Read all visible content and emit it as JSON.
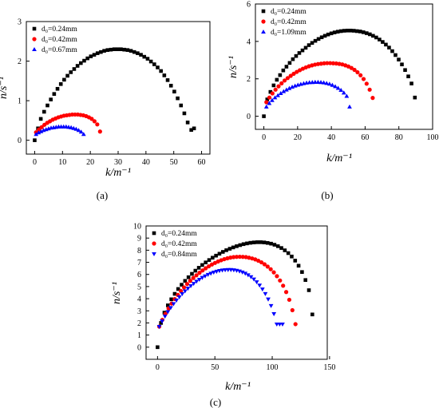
{
  "chart_data": [
    {
      "type": "scatter",
      "panel_label": "(a)",
      "xlabel": "k/m⁻¹",
      "ylabel": "n/s⁻¹",
      "xlim": [
        -3,
        63
      ],
      "ylim": [
        -0.35,
        3.0
      ],
      "xticks": [
        "0",
        "10",
        "20",
        "30",
        "40",
        "50",
        "60"
      ],
      "yticks": [
        "0",
        "1",
        "2",
        "3"
      ],
      "legend_position": "top-left",
      "series": [
        {
          "name": "d₀=0.24mm",
          "marker": "square",
          "color": "#000000",
          "x": [
            0,
            1.2,
            2.2,
            3.4,
            4.6,
            5.8,
            7.0,
            8.2,
            9.4,
            10.6,
            11.8,
            13.0,
            14.2,
            15.4,
            16.6,
            17.8,
            19.0,
            20.2,
            21.4,
            22.6,
            23.8,
            25.0,
            26.2,
            27.4,
            28.6,
            29.8,
            31.0,
            32.2,
            33.4,
            34.6,
            35.8,
            37.0,
            38.2,
            39.4,
            40.6,
            41.8,
            43.0,
            44.2,
            45.4,
            46.6,
            47.8,
            49.0,
            50.2,
            51.4,
            52.6,
            53.8,
            55.0,
            56.3,
            57.3
          ],
          "y": [
            0.0,
            0.3,
            0.54,
            0.72,
            0.88,
            1.03,
            1.17,
            1.3,
            1.42,
            1.53,
            1.63,
            1.72,
            1.8,
            1.88,
            1.95,
            2.01,
            2.07,
            2.12,
            2.16,
            2.2,
            2.23,
            2.26,
            2.28,
            2.29,
            2.3,
            2.3,
            2.3,
            2.29,
            2.28,
            2.26,
            2.23,
            2.2,
            2.16,
            2.11,
            2.06,
            1.99,
            1.92,
            1.84,
            1.75,
            1.64,
            1.52,
            1.38,
            1.23,
            1.06,
            0.88,
            0.68,
            0.45,
            0.26,
            0.3
          ]
        },
        {
          "name": "d₀=0.42mm",
          "marker": "circle",
          "color": "#ff0000",
          "x": [
            0.5,
            1.5,
            2.5,
            3.5,
            4.5,
            5.5,
            6.5,
            7.5,
            8.5,
            9.5,
            10.5,
            11.5,
            12.5,
            13.5,
            14.5,
            15.5,
            16.5,
            17.5,
            18.5,
            19.5,
            20.5,
            21.5,
            22.5,
            23.5
          ],
          "y": [
            0.2,
            0.27,
            0.33,
            0.39,
            0.44,
            0.48,
            0.52,
            0.55,
            0.58,
            0.6,
            0.62,
            0.63,
            0.64,
            0.65,
            0.65,
            0.65,
            0.64,
            0.63,
            0.61,
            0.58,
            0.54,
            0.48,
            0.4,
            0.22
          ]
        },
        {
          "name": "d₀=0.67mm",
          "marker": "triangle",
          "color": "#0000ff",
          "x": [
            0.5,
            1.4,
            2.3,
            3.2,
            4.1,
            5.0,
            5.9,
            6.8,
            7.7,
            8.6,
            9.5,
            10.4,
            11.3,
            12.2,
            13.1,
            14.0,
            14.9,
            15.8,
            16.7,
            17.6
          ],
          "y": [
            0.15,
            0.19,
            0.22,
            0.25,
            0.27,
            0.29,
            0.31,
            0.32,
            0.33,
            0.34,
            0.34,
            0.34,
            0.34,
            0.33,
            0.32,
            0.3,
            0.28,
            0.25,
            0.21,
            0.15
          ]
        }
      ]
    },
    {
      "type": "scatter",
      "panel_label": "(b)",
      "xlabel": "k/m⁻¹",
      "ylabel": "n/s⁻¹",
      "xlim": [
        -5,
        100
      ],
      "ylim": [
        -0.7,
        6.0
      ],
      "xticks": [
        "0",
        "20",
        "40",
        "60",
        "80",
        "100"
      ],
      "yticks": [
        "0",
        "2",
        "4",
        "6"
      ],
      "legend_position": "top-left",
      "series": [
        {
          "name": "d₀=0.24mm",
          "marker": "square",
          "color": "#000000",
          "x": [
            0,
            2.0,
            3.9,
            5.8,
            7.7,
            9.6,
            11.5,
            13.4,
            15.3,
            17.2,
            19.1,
            21.0,
            22.9,
            24.8,
            26.7,
            28.6,
            30.5,
            32.4,
            34.3,
            36.2,
            38.1,
            40.0,
            41.9,
            43.8,
            45.7,
            47.6,
            49.5,
            51.4,
            53.3,
            55.2,
            57.1,
            59.0,
            60.9,
            62.8,
            64.7,
            66.6,
            68.5,
            70.4,
            72.3,
            74.2,
            76.1,
            78.0,
            79.9,
            81.8,
            83.7,
            85.6,
            87.5,
            89.5
          ],
          "y": [
            0.0,
            0.9,
            1.3,
            1.65,
            1.95,
            2.2,
            2.45,
            2.65,
            2.85,
            3.05,
            3.22,
            3.38,
            3.52,
            3.66,
            3.8,
            3.92,
            4.03,
            4.13,
            4.22,
            4.3,
            4.37,
            4.43,
            4.48,
            4.52,
            4.55,
            4.57,
            4.58,
            4.58,
            4.57,
            4.55,
            4.53,
            4.49,
            4.44,
            4.38,
            4.3,
            4.21,
            4.1,
            3.97,
            3.83,
            3.67,
            3.48,
            3.27,
            3.03,
            2.77,
            2.47,
            2.13,
            1.75,
            1.0
          ]
        },
        {
          "name": "d₀=0.42mm",
          "marker": "circle",
          "color": "#ff0000",
          "x": [
            1.5,
            3.3,
            5.1,
            6.9,
            8.7,
            10.5,
            12.3,
            14.1,
            15.9,
            17.7,
            19.5,
            21.3,
            23.1,
            24.9,
            26.7,
            28.5,
            30.3,
            32.1,
            33.9,
            35.7,
            37.5,
            39.3,
            41.1,
            42.9,
            44.7,
            46.5,
            48.3,
            50.1,
            51.9,
            53.7,
            55.5,
            57.3,
            59.1,
            60.9,
            62.7,
            64.5
          ],
          "y": [
            0.75,
            1.0,
            1.22,
            1.42,
            1.6,
            1.76,
            1.91,
            2.04,
            2.16,
            2.27,
            2.37,
            2.46,
            2.54,
            2.61,
            2.67,
            2.72,
            2.76,
            2.79,
            2.81,
            2.83,
            2.84,
            2.84,
            2.83,
            2.82,
            2.8,
            2.77,
            2.72,
            2.66,
            2.58,
            2.48,
            2.35,
            2.19,
            1.99,
            1.74,
            1.42,
            0.98
          ]
        },
        {
          "name": "d₀=1.09mm",
          "marker": "triangle",
          "color": "#0000ff",
          "x": [
            1.5,
            3.2,
            4.9,
            6.6,
            8.3,
            10.0,
            11.7,
            13.4,
            15.1,
            16.8,
            18.5,
            20.2,
            21.9,
            23.6,
            25.3,
            27.0,
            28.7,
            30.4,
            32.1,
            33.8,
            35.5,
            37.2,
            38.9,
            40.6,
            42.3,
            44.0,
            45.7,
            47.4,
            49.1,
            50.8
          ],
          "y": [
            0.5,
            0.69,
            0.85,
            0.99,
            1.11,
            1.22,
            1.32,
            1.41,
            1.49,
            1.56,
            1.62,
            1.67,
            1.71,
            1.75,
            1.78,
            1.8,
            1.81,
            1.82,
            1.82,
            1.81,
            1.79,
            1.76,
            1.72,
            1.66,
            1.59,
            1.5,
            1.39,
            1.25,
            1.07,
            0.5
          ]
        }
      ]
    },
    {
      "type": "scatter",
      "panel_label": "(c)",
      "xlabel": "k/m⁻¹",
      "ylabel": "n/s⁻¹",
      "xlim": [
        -10,
        148
      ],
      "ylim": [
        -1.0,
        10.0
      ],
      "xticks": [
        "0",
        "50",
        "100",
        "150"
      ],
      "yticks": [
        "0",
        "1",
        "2",
        "3",
        "4",
        "5",
        "6",
        "7",
        "8",
        "9",
        "10"
      ],
      "legend_position": "top-left",
      "series": [
        {
          "name": "d₀=0.24mm",
          "marker": "square",
          "color": "#000000",
          "x": [
            0,
            3,
            6,
            9,
            12,
            15,
            18,
            21,
            24,
            27,
            30,
            33,
            36,
            39,
            42,
            45,
            48,
            51,
            54,
            57,
            60,
            63,
            66,
            69,
            72,
            75,
            78,
            81,
            84,
            87,
            90,
            93,
            96,
            99,
            102,
            105,
            108,
            111,
            114,
            117,
            120,
            123,
            126,
            129,
            132,
            135
          ],
          "y": [
            0.0,
            2.0,
            2.85,
            3.45,
            3.95,
            4.4,
            4.8,
            5.15,
            5.47,
            5.77,
            6.05,
            6.31,
            6.55,
            6.78,
            6.99,
            7.19,
            7.38,
            7.55,
            7.71,
            7.86,
            8.0,
            8.12,
            8.23,
            8.33,
            8.42,
            8.5,
            8.56,
            8.61,
            8.64,
            8.66,
            8.66,
            8.64,
            8.6,
            8.54,
            8.45,
            8.33,
            8.18,
            7.99,
            7.76,
            7.48,
            7.14,
            6.72,
            6.2,
            5.54,
            4.7,
            2.7
          ]
        },
        {
          "name": "d₀=0.42mm",
          "marker": "circle",
          "color": "#ff0000",
          "x": [
            1.5,
            4.2,
            6.9,
            9.6,
            12.3,
            15.0,
            17.7,
            20.4,
            23.1,
            25.8,
            28.5,
            31.2,
            33.9,
            36.6,
            39.3,
            42.0,
            44.7,
            47.4,
            50.1,
            52.8,
            55.5,
            58.2,
            60.9,
            63.6,
            66.3,
            69.0,
            71.7,
            74.4,
            77.1,
            79.8,
            82.5,
            85.2,
            87.9,
            90.6,
            93.3,
            96.0,
            98.7,
            101.4,
            104.1,
            106.8,
            109.5,
            112.2,
            114.9,
            117.6,
            120.3
          ],
          "y": [
            1.7,
            2.25,
            2.75,
            3.2,
            3.6,
            3.97,
            4.31,
            4.63,
            4.93,
            5.21,
            5.47,
            5.71,
            5.93,
            6.14,
            6.33,
            6.51,
            6.67,
            6.82,
            6.95,
            7.07,
            7.17,
            7.26,
            7.33,
            7.39,
            7.43,
            7.45,
            7.46,
            7.45,
            7.43,
            7.38,
            7.32,
            7.24,
            7.13,
            7.0,
            6.84,
            6.65,
            6.43,
            6.17,
            5.86,
            5.5,
            5.07,
            4.55,
            3.91,
            3.05,
            1.9
          ]
        },
        {
          "name": "d₀=0.84mm",
          "marker": "triangle-down",
          "color": "#0000ff",
          "x": [
            1.5,
            4.0,
            6.5,
            9.0,
            11.5,
            14.0,
            16.5,
            19.0,
            21.5,
            24.0,
            26.5,
            29.0,
            31.5,
            34.0,
            36.5,
            39.0,
            41.5,
            44.0,
            46.5,
            49.0,
            51.5,
            54.0,
            56.5,
            59.0,
            61.5,
            64.0,
            66.5,
            69.0,
            71.5,
            74.0,
            76.5,
            79.0,
            81.5,
            84.0,
            86.5,
            89.0,
            91.5,
            94.0,
            96.5,
            99.0,
            101.5,
            104.0,
            106.5,
            109.0
          ],
          "y": [
            1.7,
            2.15,
            2.55,
            2.92,
            3.26,
            3.58,
            3.87,
            4.14,
            4.4,
            4.63,
            4.85,
            5.06,
            5.25,
            5.43,
            5.59,
            5.74,
            5.87,
            5.99,
            6.09,
            6.18,
            6.25,
            6.31,
            6.35,
            6.38,
            6.39,
            6.39,
            6.37,
            6.33,
            6.27,
            6.19,
            6.09,
            5.96,
            5.8,
            5.61,
            5.38,
            5.11,
            4.79,
            4.41,
            3.96,
            3.42,
            2.75,
            1.9,
            1.9,
            1.9
          ]
        }
      ]
    }
  ]
}
